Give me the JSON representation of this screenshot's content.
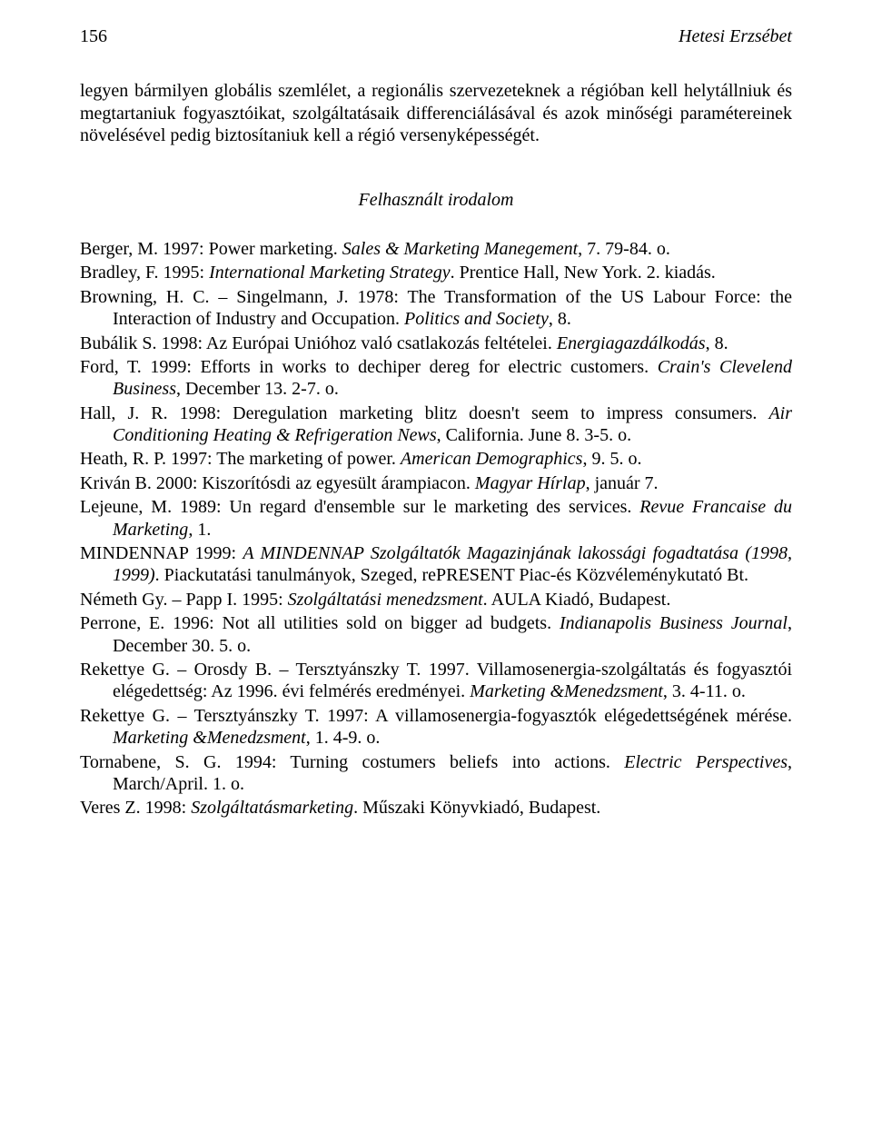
{
  "header": {
    "page_number": "156",
    "author": "Hetesi Erzsébet"
  },
  "lead_paragraph": "legyen bármilyen globális szemlélet, a regionális szervezeteknek a régióban kell helytállniuk és megtartaniuk fogyasztóikat, szolgáltatásaik differenciálásával és azok minőségi paramétereinek növelésével pedig biztosítaniuk kell a régió versenyképességét.",
  "section_title": "Felhasznált irodalom",
  "refs": [
    {
      "pre": "Berger, M. 1997: Power marketing. ",
      "it": "Sales & Marketing Manegement",
      "post": ", 7. 79-84. o."
    },
    {
      "pre": "Bradley, F. 1995: ",
      "it": "International Marketing Strategy",
      "post": ". Prentice Hall, New York. 2. kiadás."
    },
    {
      "pre": "Browning, H. C. – Singelmann, J. 1978: The Transformation of the US Labour Force: the Interaction of Industry and Occupation. ",
      "it": "Politics and Society",
      "post": ", 8."
    },
    {
      "pre": "Bubálik S. 1998: Az Európai Unióhoz való csatlakozás feltételei. ",
      "it": "Energiagazdálkodás",
      "post": ", 8."
    },
    {
      "pre": "Ford, T. 1999: Efforts in works to dechiper dereg for electric customers. ",
      "it": "Crain's Clevelend Business",
      "post": ", December 13. 2-7. o."
    },
    {
      "pre": "Hall, J. R. 1998: Deregulation marketing blitz doesn't seem to impress consumers. ",
      "it": "Air Conditioning Heating & Refrigeration News",
      "post": ", California. June 8. 3-5. o."
    },
    {
      "pre": "Heath, R. P. 1997: The marketing of power. ",
      "it": "American Demographics",
      "post": ", 9. 5. o."
    },
    {
      "pre": "Kriván B. 2000: Kiszorítósdi az egyesült árampiacon. ",
      "it": "Magyar Hírlap",
      "post": ", január 7."
    },
    {
      "pre": "Lejeune, M. 1989: Un regard d'ensemble sur le marketing des services. ",
      "it": "Revue Francaise du Marketing",
      "post": ", 1."
    },
    {
      "pre": "MINDENNAP 1999: ",
      "it": "A MINDENNAP Szolgáltatók Magazinjának lakossági fogadtatása (1998, 1999)",
      "post": ". Piackutatási tanulmányok, Szeged, rePRESENT Piac-és Közvéleménykutató Bt."
    },
    {
      "pre": "Németh Gy. – Papp I. 1995: ",
      "it": "Szolgáltatási menedzsment",
      "post": ". AULA Kiadó, Budapest."
    },
    {
      "pre": "Perrone, E. 1996: Not all utilities sold on bigger ad budgets. ",
      "it": "Indianapolis Business Journal",
      "post": ", December 30. 5. o."
    },
    {
      "pre": "Rekettye G. – Orosdy B. – Tersztyánszky T. 1997. Villamosenergia-szolgáltatás és fogyasztói elégedettség: Az 1996. évi felmérés eredményei. ",
      "it": "Marketing &Menedzsment",
      "post": ", 3. 4-11. o."
    },
    {
      "pre": "Rekettye G. – Tersztyánszky T. 1997: A villamosenergia-fogyasztók elégedettségének mérése. ",
      "it": "Marketing &Menedzsment",
      "post": ", 1. 4-9. o."
    },
    {
      "pre": "Tornabene, S. G. 1994: Turning costumers beliefs into actions. ",
      "it": "Electric Perspectives",
      "post": ", March/April. 1. o."
    },
    {
      "pre": "Veres Z. 1998: ",
      "it": "Szolgáltatásmarketing",
      "post": ". Műszaki Könyvkiadó, Budapest."
    }
  ]
}
